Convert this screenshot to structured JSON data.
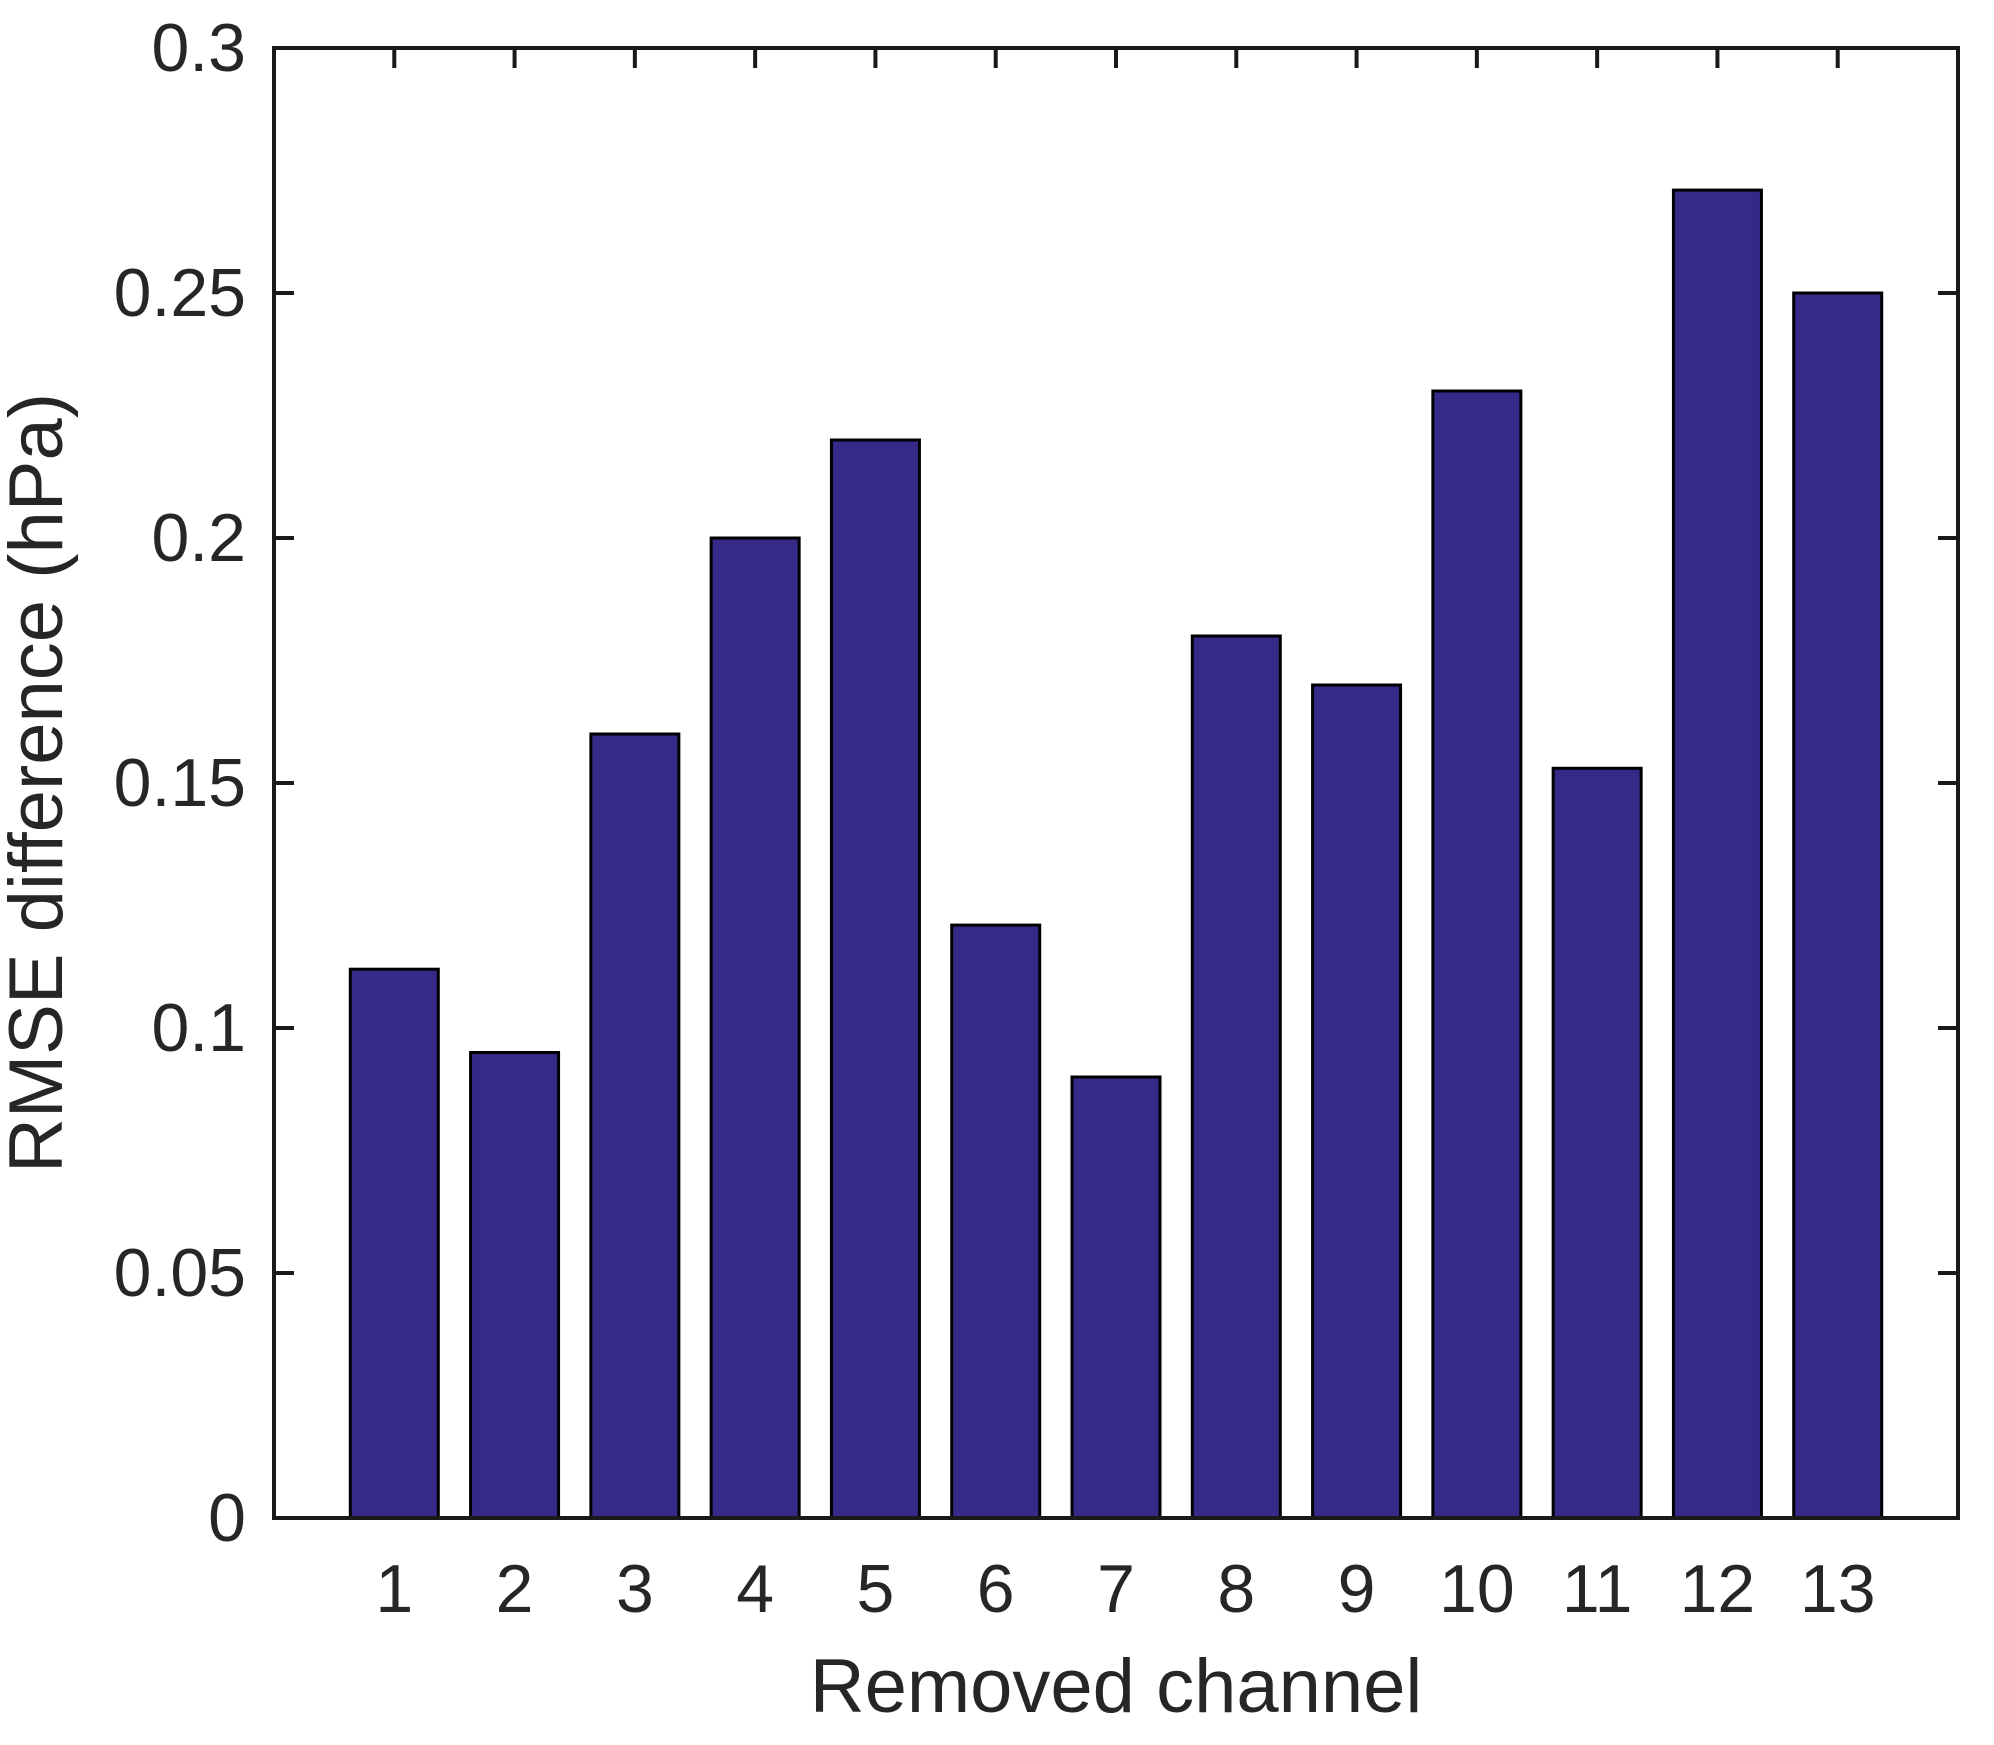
{
  "figure": {
    "background": "#ffffff"
  },
  "chart_data": {
    "type": "bar",
    "title": "",
    "xlabel": "Removed channel",
    "ylabel": "RMSE difference (hPa)",
    "categories": [
      "1",
      "2",
      "3",
      "4",
      "5",
      "6",
      "7",
      "8",
      "9",
      "10",
      "11",
      "12",
      "13"
    ],
    "values": [
      0.112,
      0.095,
      0.16,
      0.2,
      0.22,
      0.121,
      0.09,
      0.18,
      0.17,
      0.23,
      0.153,
      0.271,
      0.25
    ],
    "ylim": [
      0,
      0.3
    ],
    "yticks": [
      0,
      0.05,
      0.1,
      0.15,
      0.2,
      0.25,
      0.3
    ],
    "ytick_labels": [
      "0",
      "0.05",
      "0.1",
      "0.15",
      "0.2",
      "0.25",
      "0.3"
    ],
    "xlim": [
      0,
      14
    ],
    "grid": false,
    "legend_position": "none",
    "bar_color": "#352A87",
    "bar_edge_color": "#000000",
    "axis_color": "#1A1A1A",
    "text_color": "#262626"
  }
}
